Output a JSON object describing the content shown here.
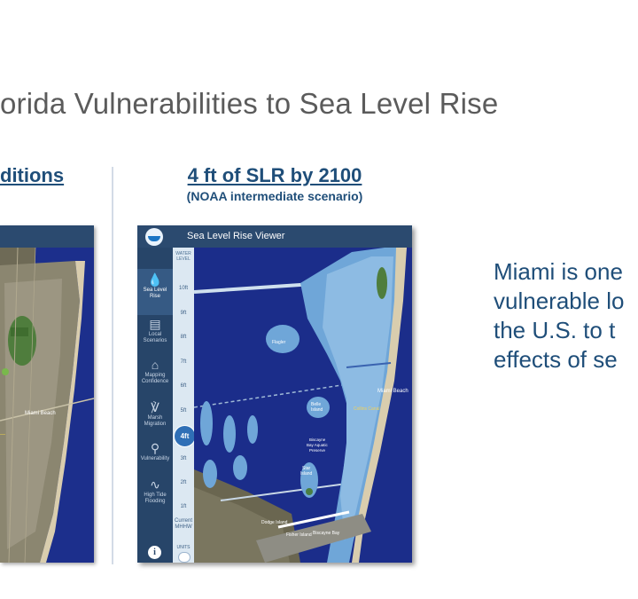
{
  "slide": {
    "title": "orida Vulnerabilities to Sea Level Rise",
    "left_heading": "ditions",
    "right_heading": "4 ft of SLR by 2100",
    "right_subheading": "(NOAA intermediate scenario)",
    "side_text": [
      "Miami is one",
      "vulnerable lo",
      "the U.S. to t",
      "effects of se"
    ]
  },
  "viewer": {
    "app_title": "Sea Level Rise Viewer",
    "sidebar": [
      {
        "label": "Sea Level\nRise",
        "icon": "droplet-icon",
        "active": true
      },
      {
        "label": "Local\nScenarios",
        "icon": "bar-chart-icon",
        "active": false
      },
      {
        "label": "Mapping\nConfidence",
        "icon": "building-icon",
        "active": false
      },
      {
        "label": "Marsh\nMigration",
        "icon": "plant-icon",
        "active": false
      },
      {
        "label": "Vulnerability",
        "icon": "person-icon",
        "active": false
      },
      {
        "label": "High Tide\nFlooding",
        "icon": "pulse-icon",
        "active": false
      }
    ],
    "info_label": "i",
    "water_level_label": "WATER\nLEVEL",
    "ticks": [
      "10ft",
      "9ft",
      "8ft",
      "7ft",
      "6ft",
      "5ft",
      "3ft",
      "2ft",
      "1ft",
      "Current\nMHHW"
    ],
    "current_level": "4ft",
    "units_label": "UNITS"
  },
  "map_labels": {
    "miami_beach": "Miami Beach",
    "left_miami_beach": "Miami Beach",
    "belle_isle": "Belle\nIsland",
    "biscayne_bay_aquatic_preserve": "Biscayne\nBay Aquatic\nPreserve",
    "biscayne_bay": "Biscayne Bay",
    "star_island": "Star\nIsland",
    "flagler_island": "Flagler\nIsland",
    "dodge_island": "Dodge\nIsland",
    "fisher_island": "Fisher Island",
    "collins_canal": "Collins Canal"
  },
  "colors": {
    "title": "#5b5b5b",
    "heading": "#1f4e79",
    "ocean": "#1b2d8a",
    "flooded_land": "#6fa6d8",
    "viewer_bar": "#2b4a6f"
  }
}
